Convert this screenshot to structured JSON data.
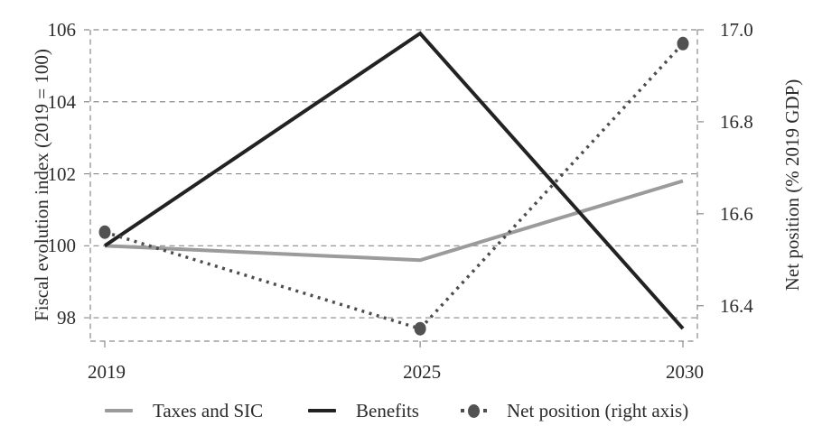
{
  "figure": {
    "background": "#ffffff",
    "text_color": "#2b2b2b",
    "grid_color": "#8a8a8a"
  },
  "chart_data": {
    "type": "line",
    "title": "",
    "x": [
      2019,
      2025,
      2030
    ],
    "x_tick_labels": [
      "2019",
      "2025",
      "2030"
    ],
    "left_axis": {
      "label": "Fiscal evolution index (2019 = 100)",
      "ticks": [
        98,
        100,
        102,
        104,
        106
      ],
      "tick_labels": [
        "98",
        "100",
        "102",
        "104",
        "106"
      ],
      "range": [
        97.35,
        106.0
      ]
    },
    "right_axis": {
      "label": "Net position (% 2019 GDP)",
      "ticks": [
        16.4,
        16.6,
        16.8,
        17.0
      ],
      "tick_labels": [
        "16.4",
        "16.6",
        "16.8",
        "17.0"
      ],
      "range": [
        16.323,
        17.0
      ]
    },
    "grid": "horizontal-dashed",
    "legend_position": "bottom",
    "series": [
      {
        "name": "Taxes and SIC",
        "axis": "left",
        "style": "solid",
        "color": "#9b9b9b",
        "line_width": 4,
        "markers": false,
        "values": [
          100.0,
          99.6,
          101.8
        ]
      },
      {
        "name": "Benefits",
        "axis": "left",
        "style": "solid",
        "color": "#222222",
        "line_width": 4,
        "markers": false,
        "values": [
          100.0,
          105.9,
          97.7
        ]
      },
      {
        "name": "Net position (right axis)",
        "axis": "right",
        "style": "dotted",
        "color": "#4d4d4d",
        "marker_color": "#525252",
        "line_width": 3.5,
        "markers": true,
        "values": [
          16.56,
          16.35,
          16.97
        ]
      }
    ]
  },
  "legend": {
    "items": [
      {
        "label": "Taxes and SIC",
        "swatch": "gray-line"
      },
      {
        "label": "Benefits",
        "swatch": "black-line"
      },
      {
        "label": "Net position (right axis)",
        "swatch": "dotted-marker"
      }
    ]
  }
}
